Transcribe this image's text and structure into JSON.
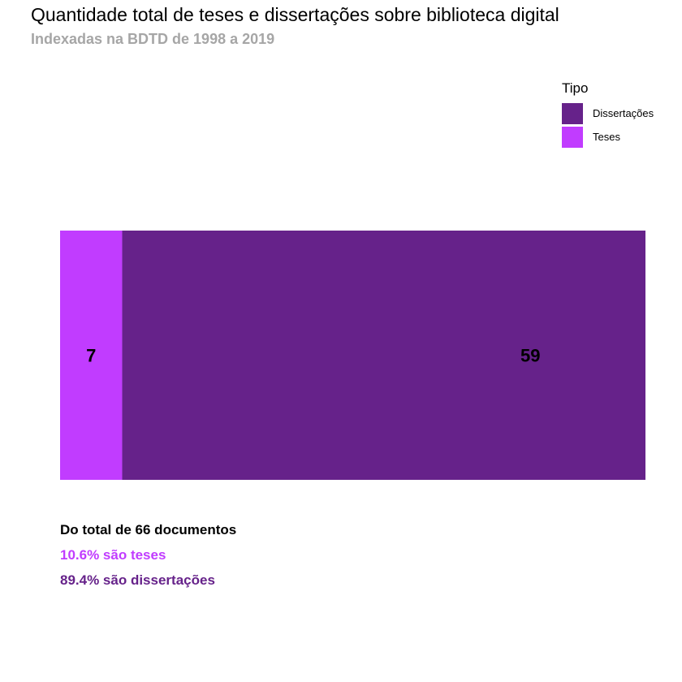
{
  "chart_data": {
    "type": "bar",
    "orientation": "horizontal-stacked",
    "title": "Quantidade total de teses e dissertações sobre biblioteca digital",
    "subtitle": "Indexadas na BDTD de 1998 a 2019",
    "legend": {
      "title": "Tipo",
      "placement": "top-right"
    },
    "series": [
      {
        "name": "Teses",
        "value": 7,
        "label": "7",
        "color": "#c13cff"
      },
      {
        "name": "Dissertações",
        "value": 59,
        "label": "59",
        "color": "#66228a"
      }
    ],
    "legend_entries": [
      {
        "name": "Dissertações",
        "color": "#66228a"
      },
      {
        "name": "Teses",
        "color": "#c13cff"
      }
    ],
    "total": 66,
    "xlim": [
      0,
      66
    ],
    "grid": false
  },
  "notes": {
    "total": "Do total de 66 documentos",
    "teses": "10.6% são teses",
    "dissertacoes": "89.4% são dissertações"
  },
  "colors": {
    "teses": "#c13cff",
    "dissertacoes": "#66228a",
    "subtitle": "#a6a6a6"
  }
}
